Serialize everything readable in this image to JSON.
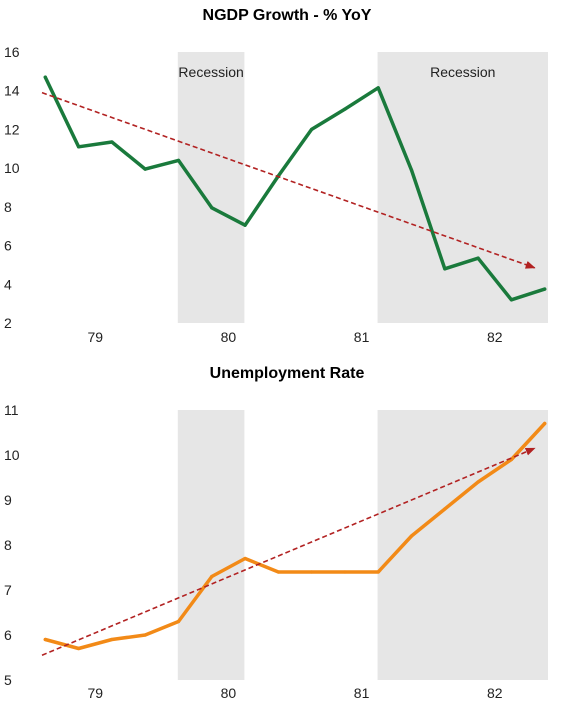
{
  "chart_data": [
    {
      "type": "line",
      "title": "NGDP Growth - % YoY",
      "xlabel": "",
      "ylabel": "",
      "x_ticks": [
        "79",
        "80",
        "81",
        "82"
      ],
      "y_ticks": [
        "2",
        "4",
        "6",
        "8",
        "10",
        "12",
        "14",
        "16"
      ],
      "ylim": [
        2,
        16
      ],
      "xlim": [
        1978.6,
        1982.4
      ],
      "series": [
        {
          "color": "#1a7a3c",
          "x": [
            1978.625,
            1978.875,
            1979.125,
            1979.375,
            1979.625,
            1979.875,
            1980.125,
            1980.375,
            1980.625,
            1980.875,
            1981.125,
            1981.375,
            1981.625,
            1981.875,
            1982.125,
            1982.375
          ],
          "values": [
            14.7,
            11.1,
            11.35,
            9.95,
            10.4,
            7.95,
            7.05,
            9.6,
            12.0,
            13.05,
            14.15,
            9.9,
            4.8,
            5.35,
            3.2,
            3.75
          ]
        }
      ],
      "trend": {
        "color": "#b22222",
        "from": [
          1978.6,
          13.9
        ],
        "to": [
          1982.3,
          4.85
        ]
      },
      "shaded_regions": [
        {
          "label": "Recession",
          "from": 1979.62,
          "to": 1980.12
        },
        {
          "label": "Recession",
          "from": 1981.12,
          "to": 1982.4
        }
      ],
      "grid": false,
      "legend": "none"
    },
    {
      "type": "line",
      "title": "Unemployment Rate",
      "xlabel": "",
      "ylabel": "",
      "x_ticks": [
        "79",
        "80",
        "81",
        "82"
      ],
      "y_ticks": [
        "5",
        "6",
        "7",
        "8",
        "9",
        "10",
        "11"
      ],
      "ylim": [
        5,
        11
      ],
      "xlim": [
        1978.6,
        1982.4
      ],
      "series": [
        {
          "color": "#f28a17",
          "x": [
            1978.625,
            1978.875,
            1979.125,
            1979.375,
            1979.625,
            1979.875,
            1980.125,
            1980.375,
            1980.625,
            1980.875,
            1981.125,
            1981.375,
            1981.625,
            1981.875,
            1982.125,
            1982.375
          ],
          "values": [
            5.9,
            5.7,
            5.9,
            6.0,
            6.3,
            7.3,
            7.7,
            7.4,
            7.4,
            7.4,
            7.4,
            8.2,
            8.8,
            9.4,
            9.9,
            10.7
          ]
        }
      ],
      "trend": {
        "color": "#b22222",
        "from": [
          1978.6,
          5.55
        ],
        "to": [
          1982.3,
          10.15
        ]
      },
      "shaded_regions": [
        {
          "label": "",
          "from": 1979.62,
          "to": 1980.12
        },
        {
          "label": "",
          "from": 1981.12,
          "to": 1982.4
        }
      ],
      "grid": false,
      "legend": "none"
    }
  ]
}
